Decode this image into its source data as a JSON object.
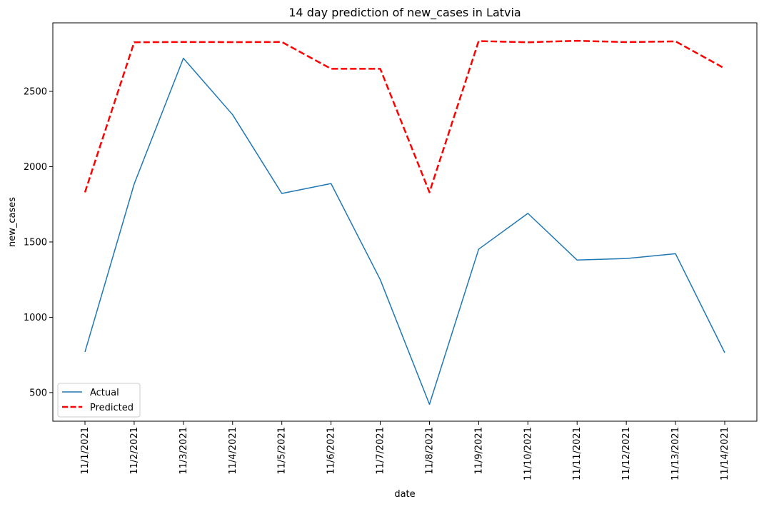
{
  "chart_data": {
    "type": "line",
    "title": "14 day prediction of new_cases in Latvia",
    "xlabel": "date",
    "ylabel": "new_cases",
    "categories": [
      "11/1/2021",
      "11/2/2021",
      "11/3/2021",
      "11/4/2021",
      "11/5/2021",
      "11/6/2021",
      "11/7/2021",
      "11/8/2021",
      "11/9/2021",
      "11/10/2021",
      "11/11/2021",
      "11/12/2021",
      "11/13/2021",
      "11/14/2021"
    ],
    "series": [
      {
        "name": "Actual",
        "color": "#1f77b4",
        "style": "solid",
        "values": [
          770,
          1885,
          2720,
          2345,
          1822,
          1888,
          1250,
          422,
          1452,
          1690,
          1380,
          1390,
          1422,
          765
        ]
      },
      {
        "name": "Predicted",
        "color": "#ff0000",
        "style": "dashed",
        "values": [
          1830,
          2826,
          2828,
          2827,
          2828,
          2650,
          2650,
          1830,
          2834,
          2826,
          2836,
          2827,
          2832,
          2652
        ]
      }
    ],
    "ylim": [
      310,
      2955
    ],
    "yticks": [
      500,
      1000,
      1500,
      2000,
      2500
    ],
    "grid": false,
    "legend_position": "lower-left"
  }
}
